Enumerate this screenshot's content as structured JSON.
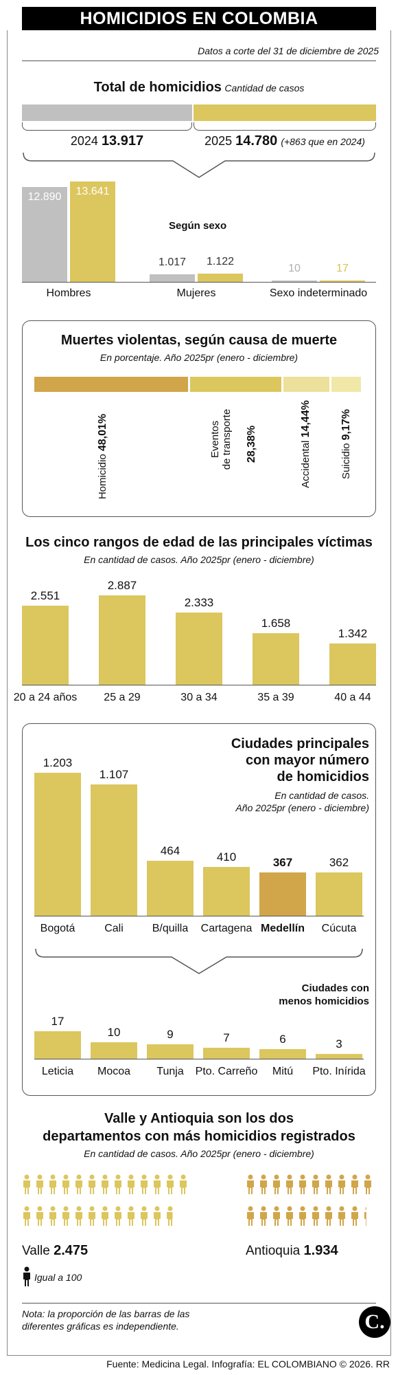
{
  "header": {
    "title": "HOMICIDIOS EN COLOMBIA",
    "cutoff": "Datos a corte del 31 de diciembre de 2025"
  },
  "colors": {
    "gold": "#dcc65e",
    "gray": "#c0c0c0",
    "dark_gold": "#d1a54a",
    "light_gold": "#ece09a",
    "pale_gold": "#f1e8a7"
  },
  "total": {
    "title": "Total de homicidios",
    "subtitle": "Cantidad de casos",
    "y2024_label": "2024",
    "y2024_value": "13.917",
    "y2025_label": "2025",
    "y2025_value": "14.780",
    "y2025_note": "(+863 que en 2024)"
  },
  "chart_data": [
    {
      "type": "bar",
      "title": "Total de homicidios",
      "subtitle": "Cantidad de casos",
      "categories": [
        "2024",
        "2025"
      ],
      "values": [
        13917,
        14780
      ]
    },
    {
      "type": "bar",
      "title": "Según sexo",
      "categories": [
        "Hombres",
        "Mujeres",
        "Sexo indeterminado"
      ],
      "series": [
        {
          "name": "2024",
          "values": [
            12890,
            1017,
            10
          ]
        },
        {
          "name": "2025",
          "values": [
            13641,
            1122,
            17
          ]
        }
      ],
      "value_labels": {
        "2024": [
          "12.890",
          "1.017",
          "10"
        ],
        "2025": [
          "13.641",
          "1.122",
          "17"
        ]
      }
    },
    {
      "type": "bar",
      "title": "Muertes violentas, según causa de muerte",
      "subtitle": "En porcentaje. Año 2025pr (enero - diciembre)",
      "categories": [
        "Homicidio",
        "Eventos de transporte",
        "Accidental",
        "Suicidio"
      ],
      "values": [
        48.01,
        28.38,
        14.44,
        9.17
      ],
      "value_labels": [
        "48,01%",
        "28,38%",
        "14,44%",
        "9,17%"
      ]
    },
    {
      "type": "bar",
      "title": "Los cinco rangos de edad de las principales víctimas",
      "subtitle": "En cantidad de casos. Año 2025pr (enero - diciembre)",
      "categories": [
        "20 a 24 años",
        "25 a 29",
        "30 a 34",
        "35 a 39",
        "40 a 44"
      ],
      "values": [
        2551,
        2887,
        2333,
        1658,
        1342
      ],
      "value_labels": [
        "2.551",
        "2.887",
        "2.333",
        "1.658",
        "1.342"
      ]
    },
    {
      "type": "bar",
      "title": "Ciudades principales con mayor número de homicidios",
      "subtitle": "En cantidad de casos. Año 2025pr (enero - diciembre)",
      "categories": [
        "Bogotá",
        "Cali",
        "B/quilla",
        "Cartagena",
        "Medellín",
        "Cúcuta"
      ],
      "values": [
        1203,
        1107,
        464,
        410,
        367,
        362
      ],
      "value_labels": [
        "1.203",
        "1.107",
        "464",
        "410",
        "367",
        "362"
      ],
      "highlight": "Medellín"
    },
    {
      "type": "bar",
      "title": "Ciudades con menos homicidios",
      "categories": [
        "Leticia",
        "Mocoa",
        "Tunja",
        "Pto. Carreño",
        "Mitú",
        "Pto. Inírida"
      ],
      "values": [
        17,
        10,
        9,
        7,
        6,
        3
      ],
      "value_labels": [
        "17",
        "10",
        "9",
        "7",
        "6",
        "3"
      ]
    },
    {
      "type": "pictogram",
      "title": "Valle y Antioquia son los dos departamentos con más homicidios registrados",
      "subtitle": "En cantidad de casos. Año 2025pr (enero - diciembre)",
      "categories": [
        "Valle",
        "Antioquia"
      ],
      "values": [
        2475,
        1934
      ],
      "value_labels": [
        "2.475",
        "1.934"
      ],
      "unit_value": 100,
      "unit_label": "Igual a 100"
    }
  ],
  "sexo": {
    "title": "Según sexo"
  },
  "causa": {
    "title": "Muertes violentas, según causa de muerte",
    "subtitle": "En porcentaje. Año 2025pr (enero - diciembre)",
    "transporte_l1": "Eventos",
    "transporte_l2": "de transporte"
  },
  "edad": {
    "title": "Los cinco rangos de edad de las principales víctimas",
    "subtitle": "En cantidad de casos. Año 2025pr (enero - diciembre)"
  },
  "ciudades": {
    "title_l1": "Ciudades principales",
    "title_l2": "con mayor número",
    "title_l3": "de homicidios",
    "sub_l1": "En cantidad de casos.",
    "sub_l2": "Año 2025pr (enero - diciembre)",
    "menos_l1": "Ciudades con",
    "menos_l2": "menos homicidios"
  },
  "deptos": {
    "title_l1": "Valle y Antioquia son los dos",
    "title_l2": "departamentos con más homicidios registrados",
    "subtitle": "En cantidad de casos. Año 2025pr (enero - diciembre)",
    "legend": "Igual a 100"
  },
  "footer": {
    "note_l1": "Nota: la proporción de las barras de las",
    "note_l2": "diferentes gráficas es independiente.",
    "source": "Fuente: Medicina Legal. Infografía: EL COLOMBIANO © 2026. RR",
    "logo": "C."
  }
}
